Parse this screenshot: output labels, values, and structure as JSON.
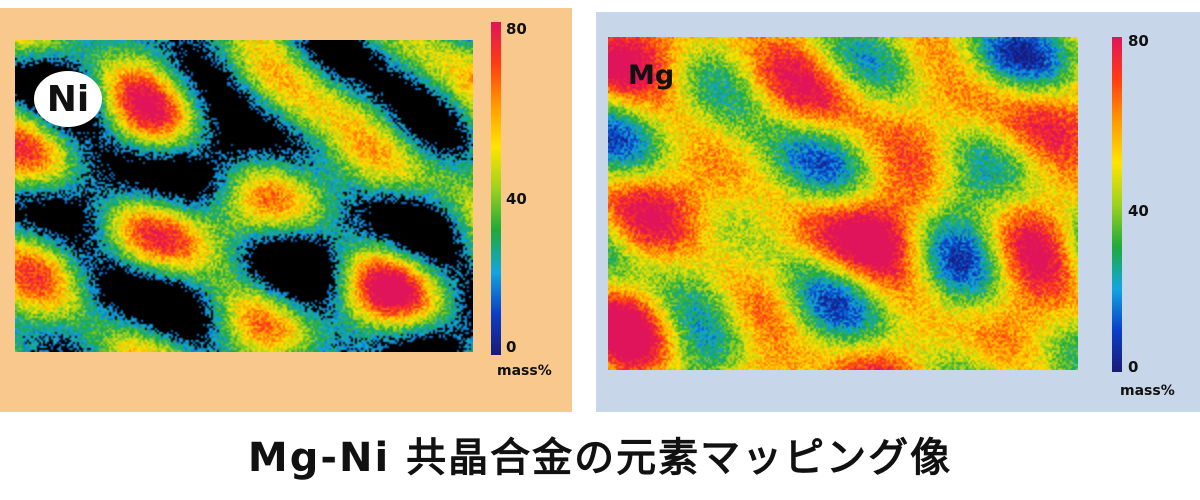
{
  "ni_panel": {
    "element_label": "Ni",
    "colorbar_ticks": {
      "max": "80",
      "mid": "40",
      "min": "0"
    },
    "unit": "mass%",
    "background_color": "#f8c88c"
  },
  "mg_panel": {
    "element_label": "Mg",
    "colorbar_ticks": {
      "max": "80",
      "mid": "40",
      "min": "0"
    },
    "unit": "mass%",
    "background_color": "#c8d6ea"
  },
  "colormap": [
    "#1a1a78",
    "#0a3fc8",
    "#12a6e0",
    "#1faa3a",
    "#9ed21e",
    "#ffe400",
    "#ff9a00",
    "#ff3c14",
    "#e0145a"
  ],
  "caption": "Mg-Ni 共晶合金の元素マッピング像"
}
